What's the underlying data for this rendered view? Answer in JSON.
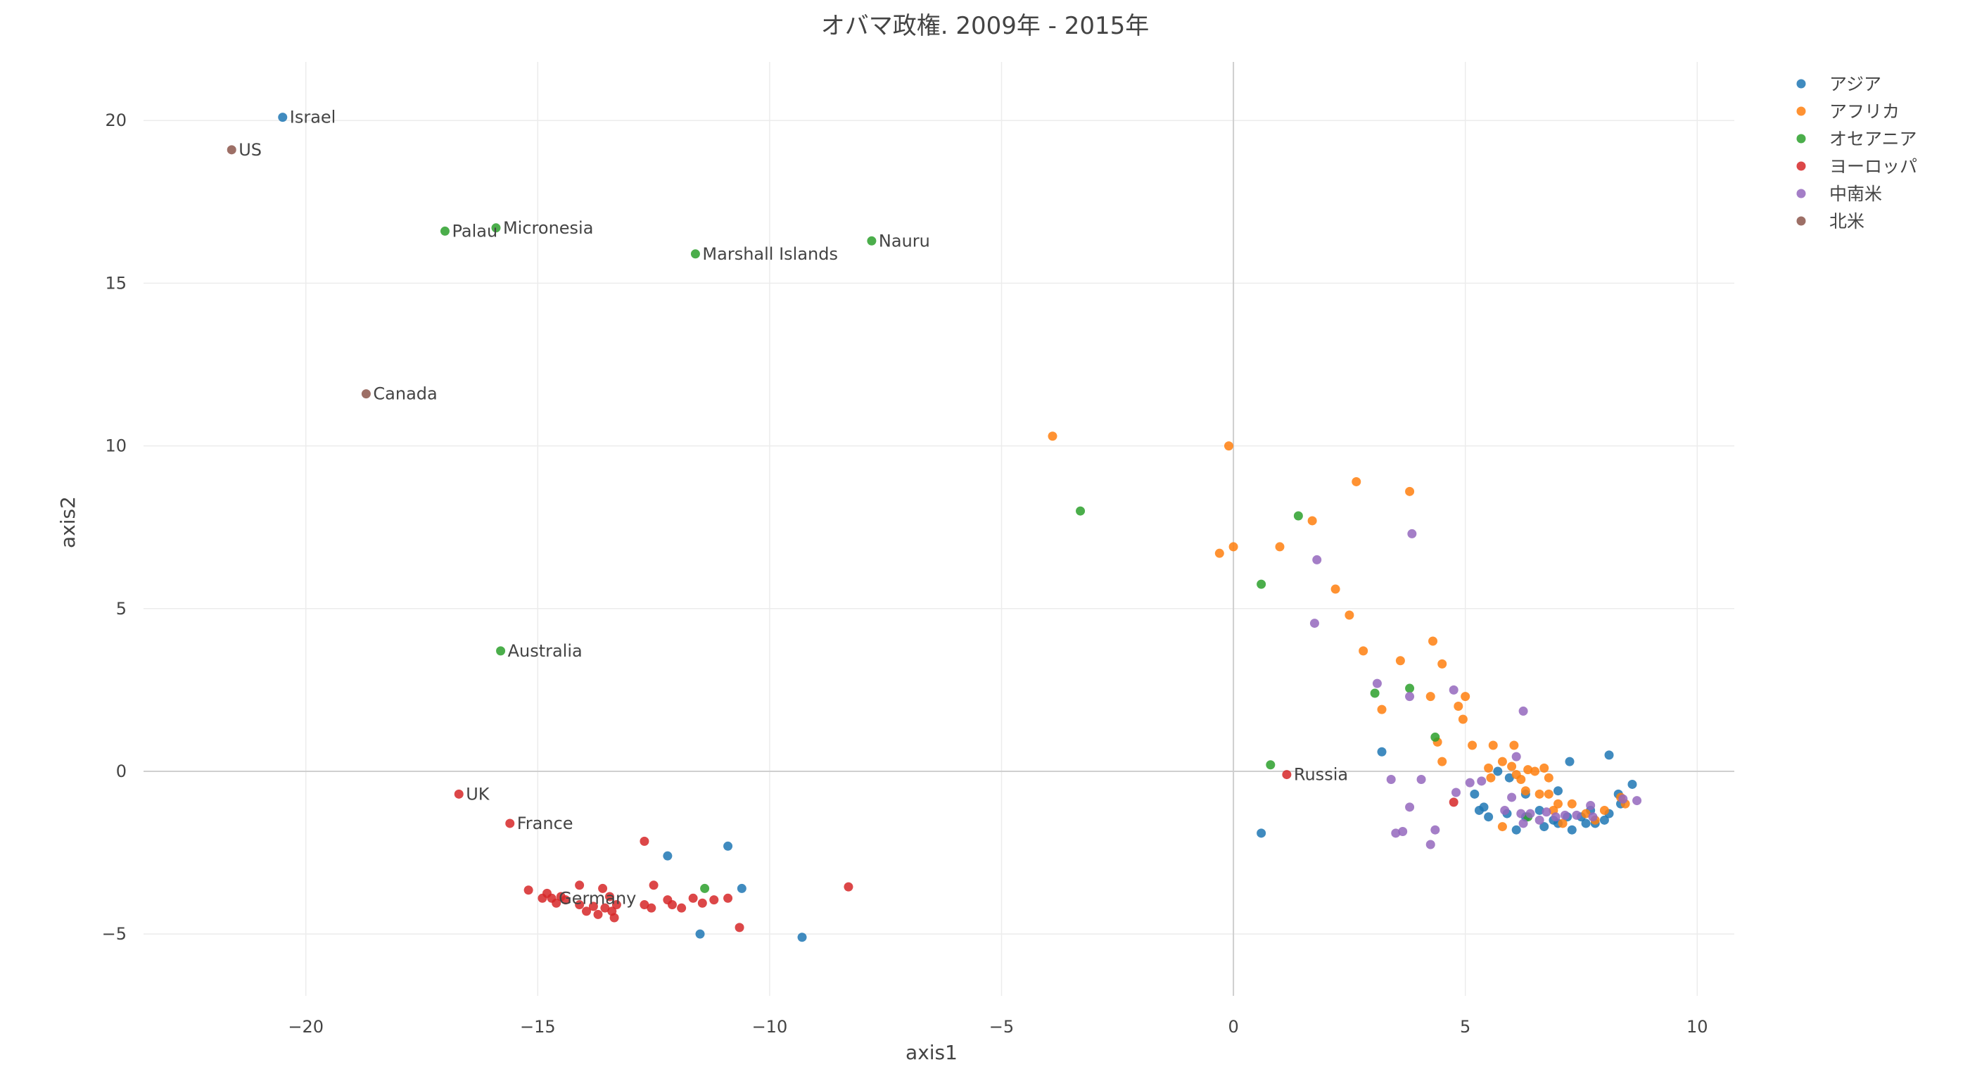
{
  "chart_data": {
    "type": "scatter",
    "title": "オバマ政権. 2009年 - 2015年",
    "xlabel": "axis1",
    "ylabel": "axis2",
    "xlim": [
      -23.5,
      10.8
    ],
    "ylim": [
      -6.9,
      21.8
    ],
    "xticks": [
      -20,
      -15,
      -10,
      -5,
      0,
      5,
      10
    ],
    "yticks": [
      -5,
      0,
      5,
      10,
      15,
      20
    ],
    "xtick_labels": [
      "−20",
      "−15",
      "−10",
      "−5",
      "0",
      "5",
      "10"
    ],
    "ytick_labels": [
      "−5",
      "0",
      "5",
      "10",
      "15",
      "20"
    ],
    "grid": true,
    "legend_position": "top-right",
    "series": [
      {
        "name": "アジア",
        "color": "#1f77b4",
        "points": [
          {
            "x": -20.5,
            "y": 20.1,
            "label": "Israel"
          },
          {
            "x": -12.2,
            "y": -2.6
          },
          {
            "x": -10.9,
            "y": -2.3
          },
          {
            "x": -10.6,
            "y": -3.6
          },
          {
            "x": -11.5,
            "y": -5.0
          },
          {
            "x": -9.3,
            "y": -5.1
          },
          {
            "x": 0.6,
            "y": -1.9
          },
          {
            "x": 3.2,
            "y": 0.6
          },
          {
            "x": 5.2,
            "y": -0.7
          },
          {
            "x": 5.3,
            "y": -1.2
          },
          {
            "x": 5.4,
            "y": -1.1
          },
          {
            "x": 5.5,
            "y": -1.4
          },
          {
            "x": 5.7,
            "y": 0.0
          },
          {
            "x": 5.9,
            "y": -1.3
          },
          {
            "x": 5.95,
            "y": -0.2
          },
          {
            "x": 6.1,
            "y": -1.8
          },
          {
            "x": 6.3,
            "y": -1.4
          },
          {
            "x": 6.3,
            "y": -0.7
          },
          {
            "x": 6.6,
            "y": -1.2
          },
          {
            "x": 6.7,
            "y": -1.7
          },
          {
            "x": 6.9,
            "y": -1.5
          },
          {
            "x": 7.0,
            "y": -0.6
          },
          {
            "x": 7.0,
            "y": -1.6
          },
          {
            "x": 7.2,
            "y": -1.4
          },
          {
            "x": 7.25,
            "y": 0.3
          },
          {
            "x": 7.3,
            "y": -1.8
          },
          {
            "x": 7.5,
            "y": -1.4
          },
          {
            "x": 7.6,
            "y": -1.6
          },
          {
            "x": 7.7,
            "y": -1.2
          },
          {
            "x": 7.8,
            "y": -1.6
          },
          {
            "x": 8.0,
            "y": -1.5
          },
          {
            "x": 8.1,
            "y": 0.5
          },
          {
            "x": 8.1,
            "y": -1.3
          },
          {
            "x": 8.3,
            "y": -0.7
          },
          {
            "x": 8.35,
            "y": -1.0
          },
          {
            "x": 8.6,
            "y": -0.4
          }
        ]
      },
      {
        "name": "アフリカ",
        "color": "#ff7f0e",
        "points": [
          {
            "x": -3.9,
            "y": 10.3
          },
          {
            "x": -0.1,
            "y": 10.0
          },
          {
            "x": -0.3,
            "y": 6.7
          },
          {
            "x": 0.0,
            "y": 6.9
          },
          {
            "x": 1.0,
            "y": 6.9
          },
          {
            "x": 1.7,
            "y": 7.7
          },
          {
            "x": 2.2,
            "y": 5.6
          },
          {
            "x": 2.5,
            "y": 4.8
          },
          {
            "x": 2.65,
            "y": 8.9
          },
          {
            "x": 2.8,
            "y": 3.7
          },
          {
            "x": 3.2,
            "y": 1.9
          },
          {
            "x": 3.6,
            "y": 3.4
          },
          {
            "x": 3.8,
            "y": 8.6
          },
          {
            "x": 4.25,
            "y": 2.3
          },
          {
            "x": 4.3,
            "y": 4.0
          },
          {
            "x": 4.4,
            "y": 0.9
          },
          {
            "x": 4.5,
            "y": 3.3
          },
          {
            "x": 4.5,
            "y": 0.3
          },
          {
            "x": 4.85,
            "y": 2.0
          },
          {
            "x": 5.0,
            "y": 2.3
          },
          {
            "x": 4.95,
            "y": 1.6
          },
          {
            "x": 5.15,
            "y": 0.8
          },
          {
            "x": 5.5,
            "y": 0.1
          },
          {
            "x": 5.55,
            "y": -0.2
          },
          {
            "x": 5.6,
            "y": 0.8
          },
          {
            "x": 5.8,
            "y": 0.3
          },
          {
            "x": 5.8,
            "y": -1.7
          },
          {
            "x": 6.0,
            "y": 0.15
          },
          {
            "x": 6.05,
            "y": 0.8
          },
          {
            "x": 6.1,
            "y": -0.1
          },
          {
            "x": 6.2,
            "y": -0.25
          },
          {
            "x": 6.3,
            "y": -0.6
          },
          {
            "x": 6.35,
            "y": 0.05
          },
          {
            "x": 6.5,
            "y": 0.0
          },
          {
            "x": 6.6,
            "y": -0.7
          },
          {
            "x": 6.7,
            "y": 0.1
          },
          {
            "x": 6.8,
            "y": -0.7
          },
          {
            "x": 6.9,
            "y": -1.2
          },
          {
            "x": 7.0,
            "y": -1.0
          },
          {
            "x": 7.1,
            "y": -1.6
          },
          {
            "x": 6.8,
            "y": -0.2
          },
          {
            "x": 7.3,
            "y": -1.0
          },
          {
            "x": 7.6,
            "y": -1.3
          },
          {
            "x": 7.8,
            "y": -1.5
          },
          {
            "x": 8.0,
            "y": -1.2
          },
          {
            "x": 8.35,
            "y": -0.8
          },
          {
            "x": 8.45,
            "y": -1.0
          }
        ]
      },
      {
        "name": "オセアニア",
        "color": "#2ca02c",
        "points": [
          {
            "x": -17.0,
            "y": 16.6,
            "label": "Palau"
          },
          {
            "x": -15.9,
            "y": 16.7,
            "label": "Micronesia"
          },
          {
            "x": -11.6,
            "y": 15.9,
            "label": "Marshall Islands"
          },
          {
            "x": -7.8,
            "y": 16.3,
            "label": "Nauru"
          },
          {
            "x": -15.8,
            "y": 3.7,
            "label": "Australia"
          },
          {
            "x": -3.3,
            "y": 8.0
          },
          {
            "x": 0.6,
            "y": 5.75
          },
          {
            "x": 1.4,
            "y": 7.85
          },
          {
            "x": 0.8,
            "y": 0.2
          },
          {
            "x": 3.05,
            "y": 2.4
          },
          {
            "x": 3.8,
            "y": 2.55
          },
          {
            "x": 4.35,
            "y": 1.05
          },
          {
            "x": -11.4,
            "y": -3.6
          },
          {
            "x": 6.35,
            "y": -1.4
          }
        ]
      },
      {
        "name": "ヨーロッパ",
        "color": "#d62728",
        "points": [
          {
            "x": -16.7,
            "y": -0.7,
            "label": "UK"
          },
          {
            "x": -15.6,
            "y": -1.6,
            "label": "France"
          },
          {
            "x": -14.7,
            "y": -3.9,
            "label": "Germany"
          },
          {
            "x": 1.15,
            "y": -0.1,
            "label": "Russia"
          },
          {
            "x": -12.7,
            "y": -2.15
          },
          {
            "x": -8.3,
            "y": -3.55
          },
          {
            "x": -15.2,
            "y": -3.65
          },
          {
            "x": -14.9,
            "y": -3.9
          },
          {
            "x": -14.8,
            "y": -3.75
          },
          {
            "x": -14.6,
            "y": -4.05
          },
          {
            "x": -14.5,
            "y": -3.85
          },
          {
            "x": -14.4,
            "y": -3.95
          },
          {
            "x": -14.1,
            "y": -3.5
          },
          {
            "x": -14.1,
            "y": -4.1
          },
          {
            "x": -13.95,
            "y": -4.3
          },
          {
            "x": -13.8,
            "y": -4.15
          },
          {
            "x": -13.7,
            "y": -4.4
          },
          {
            "x": -13.6,
            "y": -3.6
          },
          {
            "x": -13.55,
            "y": -4.2
          },
          {
            "x": -13.4,
            "y": -4.3
          },
          {
            "x": -13.35,
            "y": -4.5
          },
          {
            "x": -13.3,
            "y": -4.1
          },
          {
            "x": -13.45,
            "y": -3.85
          },
          {
            "x": -12.7,
            "y": -4.1
          },
          {
            "x": -12.55,
            "y": -4.2
          },
          {
            "x": -12.5,
            "y": -3.5
          },
          {
            "x": -12.2,
            "y": -3.95
          },
          {
            "x": -12.1,
            "y": -4.1
          },
          {
            "x": -11.9,
            "y": -4.2
          },
          {
            "x": -11.65,
            "y": -3.9
          },
          {
            "x": -11.45,
            "y": -4.05
          },
          {
            "x": -11.2,
            "y": -3.95
          },
          {
            "x": -10.9,
            "y": -3.9
          },
          {
            "x": -10.65,
            "y": -4.8
          },
          {
            "x": 4.75,
            "y": -0.95
          }
        ]
      },
      {
        "name": "中南米",
        "color": "#9467bd",
        "points": [
          {
            "x": 3.85,
            "y": 7.3
          },
          {
            "x": 1.8,
            "y": 6.5
          },
          {
            "x": 1.75,
            "y": 4.55
          },
          {
            "x": 3.1,
            "y": 2.7
          },
          {
            "x": 3.8,
            "y": 2.3
          },
          {
            "x": 4.75,
            "y": 2.5
          },
          {
            "x": 6.25,
            "y": 1.85
          },
          {
            "x": 3.4,
            "y": -0.25
          },
          {
            "x": 4.05,
            "y": -0.25
          },
          {
            "x": 3.8,
            "y": -1.1
          },
          {
            "x": 4.8,
            "y": -0.65
          },
          {
            "x": 5.1,
            "y": -0.35
          },
          {
            "x": 5.35,
            "y": -0.3
          },
          {
            "x": 6.1,
            "y": 0.45
          },
          {
            "x": 3.5,
            "y": -1.9
          },
          {
            "x": 3.65,
            "y": -1.85
          },
          {
            "x": 4.25,
            "y": -2.25
          },
          {
            "x": 4.35,
            "y": -1.8
          },
          {
            "x": 5.85,
            "y": -1.2
          },
          {
            "x": 6.0,
            "y": -0.8
          },
          {
            "x": 6.2,
            "y": -1.3
          },
          {
            "x": 6.25,
            "y": -1.6
          },
          {
            "x": 6.4,
            "y": -1.3
          },
          {
            "x": 6.6,
            "y": -1.5
          },
          {
            "x": 6.75,
            "y": -1.25
          },
          {
            "x": 6.95,
            "y": -1.4
          },
          {
            "x": 7.15,
            "y": -1.35
          },
          {
            "x": 7.4,
            "y": -1.35
          },
          {
            "x": 7.7,
            "y": -1.05
          },
          {
            "x": 7.75,
            "y": -1.4
          },
          {
            "x": 8.4,
            "y": -0.85
          },
          {
            "x": 8.7,
            "y": -0.9
          }
        ]
      },
      {
        "name": "北米",
        "color": "#8c564b",
        "points": [
          {
            "x": -21.6,
            "y": 19.1,
            "label": "US"
          },
          {
            "x": -18.7,
            "y": 11.6,
            "label": "Canada"
          }
        ]
      }
    ]
  }
}
